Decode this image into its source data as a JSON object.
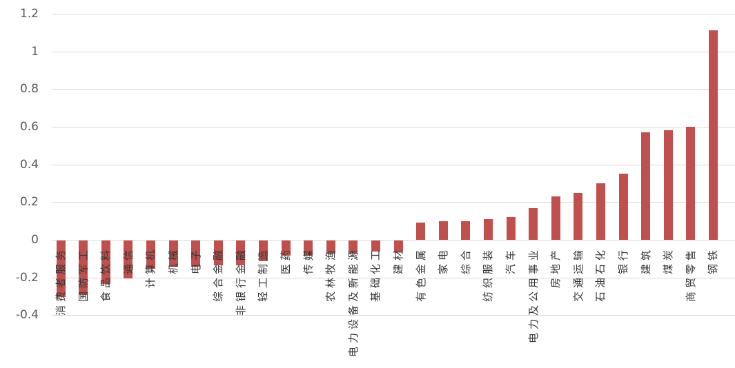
{
  "chart_data": {
    "type": "bar",
    "title": "",
    "xlabel": "",
    "ylabel": "",
    "categories": [
      "消费者服务",
      "国防军工",
      "食品饮料",
      "通信",
      "计算机",
      "机械",
      "电子",
      "综合金融",
      "非银行金融",
      "轻工制造",
      "医药",
      "传媒",
      "农林牧渔",
      "电力设备及新能源",
      "基础化工",
      "建材",
      "有色金属",
      "家电",
      "综合",
      "纺织服装",
      "汽车",
      "电力及公用事业",
      "房地产",
      "交通运输",
      "石油石化",
      "银行",
      "建筑",
      "煤炭",
      "商贸零售",
      "钢铁"
    ],
    "values": [
      -0.3,
      -0.29,
      -0.23,
      -0.2,
      -0.15,
      -0.14,
      -0.14,
      -0.13,
      -0.13,
      -0.11,
      -0.08,
      -0.08,
      -0.07,
      -0.07,
      -0.06,
      -0.06,
      0.09,
      0.1,
      0.1,
      0.11,
      0.12,
      0.17,
      0.23,
      0.25,
      0.3,
      0.35,
      0.57,
      0.58,
      0.6,
      1.11
    ],
    "ytick_labels": [
      "1.2",
      "1",
      "0.8",
      "0.6",
      "0.4",
      "0.2",
      "0",
      "-0.2",
      "-0.4"
    ],
    "yticks": [
      1.2,
      1.0,
      0.8,
      0.6,
      0.4,
      0.2,
      0.0,
      -0.2,
      -0.4
    ],
    "ylim": [
      -0.4,
      1.2
    ],
    "grid": true,
    "legend_position": "none",
    "bar_color": "#c0504d",
    "gridline_color": "#d9d9d9",
    "ytick_color": "#595959",
    "category_label_color": "#363636"
  }
}
